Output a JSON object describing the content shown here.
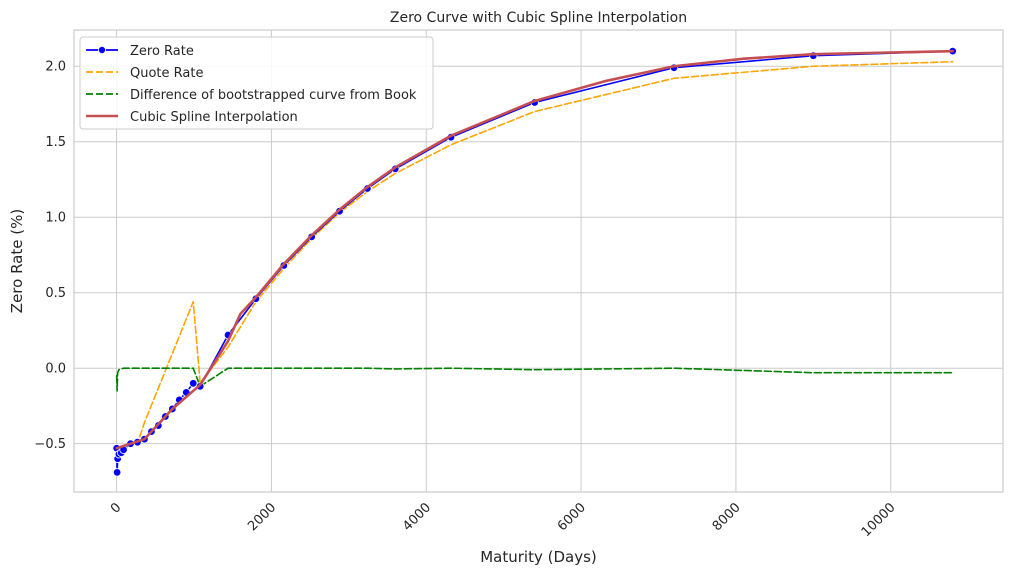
{
  "chart_data": {
    "type": "line",
    "title": "Zero Curve with Cubic Spline Interpolation",
    "xlabel": "Maturity (Days)",
    "ylabel": "Zero Rate (%)",
    "xlim": [
      -550,
      11450
    ],
    "ylim": [
      -0.82,
      2.24
    ],
    "x_ticks": [
      0,
      2000,
      4000,
      6000,
      8000,
      10000
    ],
    "x_tick_labels": [
      "0",
      "2000",
      "4000",
      "6000",
      "8000",
      "10000"
    ],
    "y_ticks": [
      -0.5,
      0.0,
      0.5,
      1.0,
      1.5,
      2.0
    ],
    "y_tick_labels": [
      "−0.5",
      "0.0",
      "0.5",
      "1.0",
      "1.5",
      "2.0"
    ],
    "grid": true,
    "legend_position": "top-left",
    "series": [
      {
        "name": "Zero Rate",
        "color": "#0000ff",
        "style": "solid",
        "marker": "circle",
        "points": [
          [
            1,
            -0.53
          ],
          [
            7,
            -0.69
          ],
          [
            14,
            -0.6
          ],
          [
            30,
            -0.57
          ],
          [
            60,
            -0.56
          ],
          [
            90,
            -0.54
          ],
          [
            180,
            -0.5
          ],
          [
            270,
            -0.49
          ],
          [
            360,
            -0.47
          ],
          [
            450,
            -0.42
          ],
          [
            540,
            -0.38
          ],
          [
            630,
            -0.32
          ],
          [
            720,
            -0.27
          ],
          [
            810,
            -0.21
          ],
          [
            900,
            -0.16
          ],
          [
            990,
            -0.1
          ],
          [
            1080,
            -0.12
          ],
          [
            1440,
            0.22
          ],
          [
            1800,
            0.46
          ],
          [
            2160,
            0.68
          ],
          [
            2520,
            0.87
          ],
          [
            2880,
            1.04
          ],
          [
            3240,
            1.19
          ],
          [
            3600,
            1.32
          ],
          [
            4320,
            1.53
          ],
          [
            5400,
            1.76
          ],
          [
            7200,
            1.99
          ],
          [
            9000,
            2.07
          ],
          [
            10800,
            2.1
          ]
        ]
      },
      {
        "name": "Quote Rate",
        "color": "#ffa500",
        "style": "dashed",
        "marker": "none",
        "points": [
          [
            1,
            -0.53
          ],
          [
            30,
            -0.54
          ],
          [
            90,
            -0.52
          ],
          [
            180,
            -0.5
          ],
          [
            270,
            -0.5
          ],
          [
            360,
            -0.36
          ],
          [
            990,
            0.44
          ],
          [
            1080,
            -0.1
          ],
          [
            1440,
            0.14
          ],
          [
            1800,
            0.44
          ],
          [
            2160,
            0.66
          ],
          [
            2520,
            0.86
          ],
          [
            2880,
            1.03
          ],
          [
            3240,
            1.17
          ],
          [
            3600,
            1.29
          ],
          [
            4320,
            1.48
          ],
          [
            5400,
            1.7
          ],
          [
            7200,
            1.92
          ],
          [
            9000,
            2.0
          ],
          [
            10800,
            2.03
          ]
        ]
      },
      {
        "name": "Difference of bootstrapped curve from Book",
        "color": "#008000",
        "style": "dashed",
        "marker": "none",
        "points": [
          [
            1,
            -0.05
          ],
          [
            7,
            -0.15
          ],
          [
            14,
            -0.03
          ],
          [
            30,
            -0.01
          ],
          [
            90,
            0.0
          ],
          [
            180,
            0.0
          ],
          [
            360,
            0.0
          ],
          [
            720,
            0.0
          ],
          [
            990,
            0.0
          ],
          [
            1080,
            -0.12
          ],
          [
            1440,
            0.0
          ],
          [
            1800,
            0.0
          ],
          [
            2160,
            0.0
          ],
          [
            2520,
            0.0
          ],
          [
            2880,
            0.0
          ],
          [
            3240,
            0.0
          ],
          [
            3600,
            -0.005
          ],
          [
            4320,
            0.0
          ],
          [
            5400,
            -0.01
          ],
          [
            7200,
            0.0
          ],
          [
            9000,
            -0.03
          ],
          [
            10800,
            -0.03
          ]
        ]
      },
      {
        "name": "Cubic Spline Interpolation",
        "color": "#c44e52",
        "style": "solid",
        "marker": "none",
        "points": [
          [
            1,
            -0.53
          ],
          [
            180,
            -0.5
          ],
          [
            360,
            -0.47
          ],
          [
            720,
            -0.27
          ],
          [
            1080,
            -0.11
          ],
          [
            1440,
            0.18
          ],
          [
            1600,
            0.36
          ],
          [
            1800,
            0.47
          ],
          [
            2160,
            0.69
          ],
          [
            2520,
            0.88
          ],
          [
            2880,
            1.05
          ],
          [
            3240,
            1.2
          ],
          [
            3600,
            1.33
          ],
          [
            4320,
            1.54
          ],
          [
            5400,
            1.77
          ],
          [
            6300,
            1.9
          ],
          [
            7200,
            2.0
          ],
          [
            8100,
            2.05
          ],
          [
            9000,
            2.08
          ],
          [
            10800,
            2.1
          ]
        ]
      }
    ]
  }
}
